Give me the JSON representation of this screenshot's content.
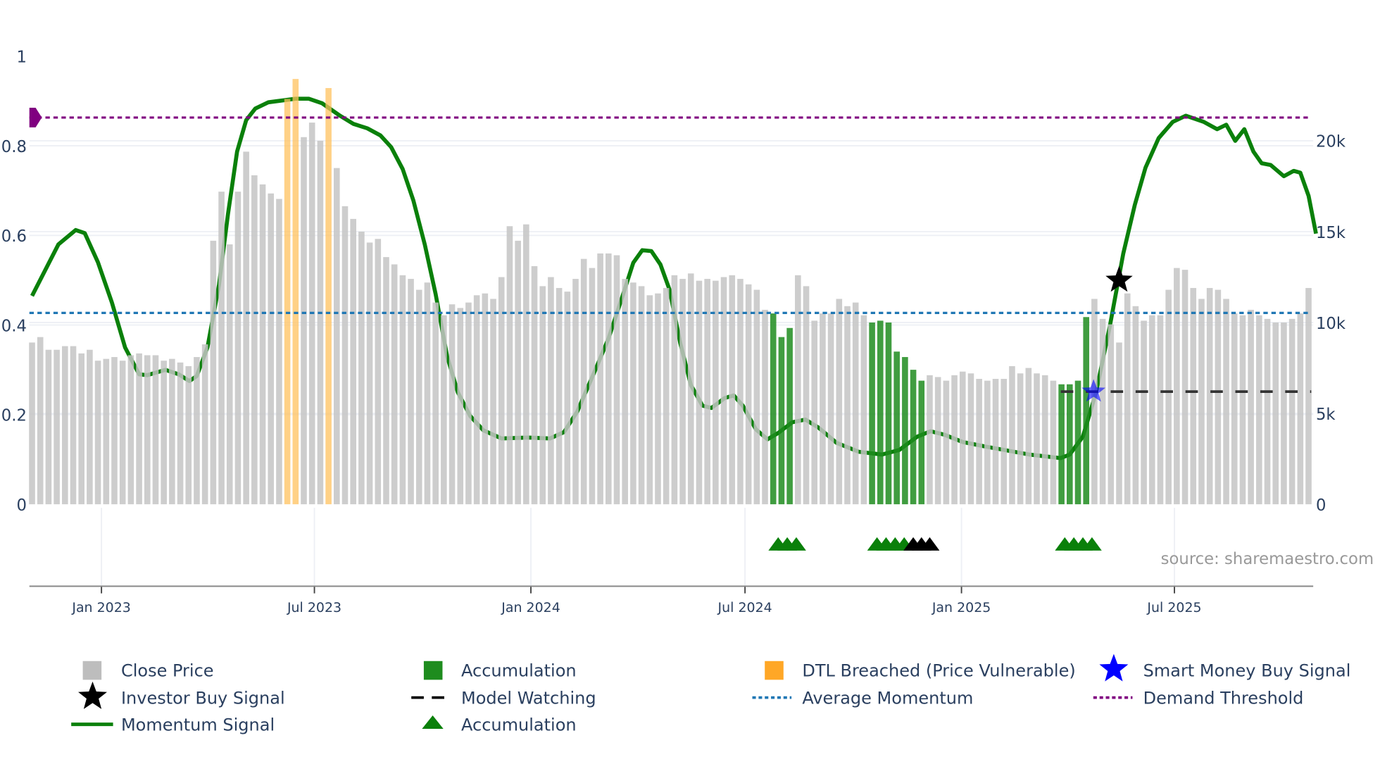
{
  "chart_data": {
    "type": "bar+line",
    "start_date": "2022-11-03",
    "interval": "weekly",
    "y_left": {
      "ticks": [
        0,
        0.2,
        0.4,
        0.6,
        0.8,
        1
      ],
      "labels": [
        "0",
        "0.2",
        "0.4",
        "0.6",
        "0.8",
        "1"
      ],
      "range": [
        0,
        1
      ]
    },
    "y_right": {
      "ticks": [
        0,
        5000,
        10000,
        15000,
        20000
      ],
      "labels": [
        "0",
        "5k",
        "10k",
        "15k",
        "20k"
      ],
      "range": [
        0,
        24650
      ]
    },
    "x_ticks": [
      {
        "date": "2023-01-01",
        "label": "Jan 2023"
      },
      {
        "date": "2023-07-01",
        "label": "Jul 2023"
      },
      {
        "date": "2024-01-01",
        "label": "Jan 2024"
      },
      {
        "date": "2024-07-01",
        "label": "Jul 2024"
      },
      {
        "date": "2025-01-01",
        "label": "Jan 2025"
      },
      {
        "date": "2025-07-01",
        "label": "Jul 2025"
      }
    ],
    "close_price_k": [
      8.9,
      9.2,
      8.5,
      8.5,
      8.7,
      8.7,
      8.3,
      8.5,
      7.9,
      8.0,
      8.1,
      7.9,
      8.2,
      8.3,
      8.2,
      8.2,
      7.9,
      8.0,
      7.8,
      7.6,
      8.1,
      8.8,
      14.5,
      17.2,
      14.3,
      17.2,
      19.4,
      18.1,
      17.6,
      17.1,
      16.8,
      22.3,
      23.4,
      20.2,
      21.0,
      20.0,
      22.9,
      18.5,
      16.4,
      15.7,
      15.0,
      14.4,
      14.6,
      13.6,
      13.2,
      12.6,
      12.4,
      11.8,
      12.2,
      11.1,
      10.4,
      11.0,
      10.8,
      11.1,
      11.5,
      11.6,
      11.3,
      12.5,
      15.3,
      14.5,
      15.4,
      13.1,
      12.0,
      12.5,
      11.9,
      11.7,
      12.4,
      13.5,
      13.0,
      13.8,
      13.8,
      13.7,
      12.4,
      12.2,
      12.0,
      11.5,
      11.6,
      11.9,
      12.6,
      12.4,
      12.7,
      12.3,
      12.4,
      12.3,
      12.5,
      12.6,
      12.4,
      12.1,
      11.8,
      10.7,
      10.5,
      9.2,
      9.7,
      12.6,
      12.0,
      10.1,
      10.5,
      10.5,
      11.3,
      10.9,
      11.1,
      10.4,
      10.0,
      10.1,
      10.0,
      8.4,
      8.1,
      7.4,
      6.8,
      7.1,
      7.0,
      6.8,
      7.1,
      7.3,
      7.2,
      6.9,
      6.8,
      6.9,
      6.9,
      7.6,
      7.2,
      7.5,
      7.2,
      7.1,
      6.8,
      6.6,
      6.6,
      6.8,
      10.3,
      11.3,
      10.2,
      9.9,
      8.9,
      11.6,
      10.9,
      10.1,
      10.4,
      10.4,
      11.8,
      13.0,
      12.9,
      11.9,
      11.3,
      11.9,
      11.8,
      11.3,
      10.5,
      10.4,
      10.7,
      10.4,
      10.2,
      10.0,
      10.0,
      10.2,
      10.5,
      11.9
    ],
    "accumulation_bar_weeks": [
      90,
      91,
      92,
      102,
      103,
      104,
      105,
      106,
      107,
      108,
      125,
      126,
      127,
      128
    ],
    "dtl_breached_bar_weeks": [
      31,
      32,
      36
    ],
    "momentum_signal": [
      [
        0,
        0.465
      ],
      [
        3.2,
        0.58
      ],
      [
        5.3,
        0.612
      ],
      [
        6.4,
        0.605
      ],
      [
        8,
        0.54
      ],
      [
        9.7,
        0.45
      ],
      [
        11.3,
        0.35
      ],
      [
        13,
        0.29
      ],
      [
        14,
        0.288
      ],
      [
        16.2,
        0.3
      ],
      [
        17.8,
        0.29
      ],
      [
        19.1,
        0.275
      ],
      [
        20,
        0.286
      ],
      [
        21.3,
        0.35
      ],
      [
        22.7,
        0.49
      ],
      [
        23.8,
        0.648
      ],
      [
        24.9,
        0.787
      ],
      [
        26,
        0.857
      ],
      [
        27.1,
        0.883
      ],
      [
        28.7,
        0.897
      ],
      [
        32,
        0.905
      ],
      [
        33.6,
        0.905
      ],
      [
        35.2,
        0.895
      ],
      [
        37.4,
        0.867
      ],
      [
        39,
        0.849
      ],
      [
        40.7,
        0.839
      ],
      [
        42.3,
        0.823
      ],
      [
        43.6,
        0.797
      ],
      [
        45,
        0.748
      ],
      [
        46.3,
        0.678
      ],
      [
        47.7,
        0.579
      ],
      [
        49,
        0.469
      ],
      [
        50.4,
        0.33
      ],
      [
        51.7,
        0.25
      ],
      [
        53.2,
        0.197
      ],
      [
        54.8,
        0.165
      ],
      [
        57,
        0.147
      ],
      [
        60.2,
        0.149
      ],
      [
        62.9,
        0.147
      ],
      [
        64.6,
        0.161
      ],
      [
        66.2,
        0.207
      ],
      [
        68.4,
        0.3
      ],
      [
        70,
        0.37
      ],
      [
        71.6,
        0.459
      ],
      [
        73,
        0.539
      ],
      [
        74.1,
        0.567
      ],
      [
        75.2,
        0.565
      ],
      [
        76.3,
        0.535
      ],
      [
        77.4,
        0.479
      ],
      [
        78.7,
        0.36
      ],
      [
        80,
        0.266
      ],
      [
        81.4,
        0.22
      ],
      [
        82.5,
        0.215
      ],
      [
        84.1,
        0.237
      ],
      [
        85.2,
        0.243
      ],
      [
        86.3,
        0.22
      ],
      [
        87.9,
        0.167
      ],
      [
        89.3,
        0.145
      ],
      [
        90.6,
        0.159
      ],
      [
        92.3,
        0.183
      ],
      [
        93.9,
        0.189
      ],
      [
        95.5,
        0.171
      ],
      [
        97.7,
        0.137
      ],
      [
        100.4,
        0.117
      ],
      [
        103.2,
        0.111
      ],
      [
        105.3,
        0.121
      ],
      [
        107.5,
        0.151
      ],
      [
        109.1,
        0.163
      ],
      [
        110.8,
        0.155
      ],
      [
        113,
        0.139
      ],
      [
        115.7,
        0.129
      ],
      [
        121.1,
        0.111
      ],
      [
        124.9,
        0.103
      ],
      [
        126,
        0.111
      ],
      [
        127.6,
        0.151
      ],
      [
        129.2,
        0.25
      ],
      [
        130.9,
        0.4
      ],
      [
        132.5,
        0.559
      ],
      [
        133.9,
        0.668
      ],
      [
        135.2,
        0.751
      ],
      [
        136.8,
        0.817
      ],
      [
        138.5,
        0.853
      ],
      [
        140.1,
        0.867
      ],
      [
        142.3,
        0.853
      ],
      [
        143.9,
        0.837
      ],
      [
        145,
        0.847
      ],
      [
        146.1,
        0.811
      ],
      [
        147.2,
        0.837
      ],
      [
        148.3,
        0.787
      ],
      [
        149.3,
        0.761
      ],
      [
        150.4,
        0.757
      ],
      [
        152,
        0.732
      ],
      [
        153.2,
        0.744
      ],
      [
        154,
        0.74
      ],
      [
        155,
        0.688
      ],
      [
        155.9,
        0.604
      ]
    ],
    "average_momentum": 0.427,
    "demand_threshold": 0.863,
    "model_watching": {
      "value_k": 6.2,
      "from_week": 126,
      "to_week": 155
    },
    "smart_money_buy_signal": {
      "week": 128.9,
      "value_k": 6.2
    },
    "investor_buy_signal": {
      "week": 132,
      "momentum": 0.5
    },
    "accumulation_triangles": {
      "green_weeks": [
        90.6,
        91.7,
        92.8,
        102.6,
        103.7,
        104.8,
        105.9,
        125.4,
        126.5,
        127.6,
        128.7
      ],
      "black_weeks": [
        107,
        108,
        109
      ]
    },
    "colors": {
      "close": "#c4c4c4",
      "accumulation": "#1e8c1e",
      "dtl": "#ffa500",
      "momentum": "#0a800a",
      "avg": "#1f77b4",
      "threshold": "#800080",
      "smart": "#0000ff",
      "investor": "#000000"
    },
    "source_note": "source: sharemaestro.com",
    "legend": [
      {
        "label": "Close Price",
        "icon": "gray-square"
      },
      {
        "label": "Accumulation",
        "icon": "green-square"
      },
      {
        "label": "DTL Breached (Price Vulnerable)",
        "icon": "orange-square"
      },
      {
        "label": "Smart Money Buy Signal",
        "icon": "blue-star"
      },
      {
        "label": "Investor Buy Signal",
        "icon": "black-star"
      },
      {
        "label": "Model Watching",
        "icon": "black-dash"
      },
      {
        "label": "Average Momentum",
        "icon": "blue-dots"
      },
      {
        "label": "Demand Threshold",
        "icon": "purple-dots"
      },
      {
        "label": "Momentum Signal",
        "icon": "green-line"
      },
      {
        "label": "Accumulation",
        "icon": "green-triangle"
      }
    ]
  }
}
